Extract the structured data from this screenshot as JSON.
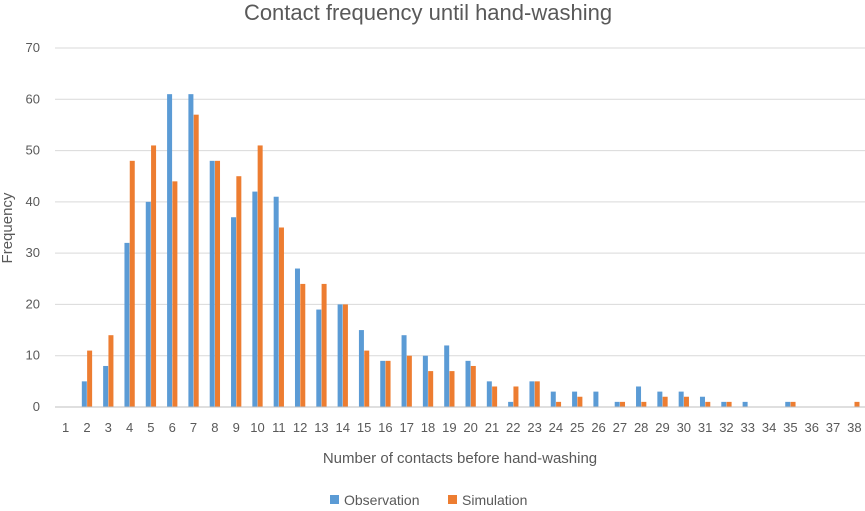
{
  "chart_data": {
    "type": "bar",
    "title": "Contact frequency until hand-washing",
    "xlabel": "Number of contacts before hand-washing",
    "ylabel": "Frequency",
    "ylim": [
      0,
      70
    ],
    "yticks": [
      0,
      10,
      20,
      30,
      40,
      50,
      60,
      70
    ],
    "grid": true,
    "legend_position": "bottom",
    "categories": [
      "1",
      "2",
      "3",
      "4",
      "5",
      "6",
      "7",
      "8",
      "9",
      "10",
      "11",
      "12",
      "13",
      "14",
      "15",
      "16",
      "17",
      "18",
      "19",
      "20",
      "21",
      "22",
      "23",
      "24",
      "25",
      "26",
      "27",
      "28",
      "29",
      "30",
      "31",
      "32",
      "33",
      "34",
      "35",
      "36",
      "37",
      "38"
    ],
    "series": [
      {
        "name": "Observation",
        "color": "#5b9bd5",
        "values": [
          0,
          5,
          8,
          32,
          40,
          61,
          61,
          48,
          37,
          42,
          41,
          27,
          19,
          20,
          15,
          9,
          14,
          10,
          12,
          9,
          5,
          1,
          5,
          3,
          3,
          3,
          1,
          4,
          3,
          3,
          2,
          1,
          1,
          0,
          1,
          0,
          0,
          0
        ]
      },
      {
        "name": "Simulation",
        "color": "#ed7d31",
        "values": [
          0,
          11,
          14,
          48,
          51,
          44,
          57,
          48,
          45,
          51,
          35,
          24,
          24,
          20,
          11,
          9,
          10,
          7,
          7,
          8,
          4,
          4,
          5,
          1,
          2,
          0,
          1,
          1,
          2,
          2,
          1,
          1,
          0,
          0,
          1,
          0,
          0,
          1
        ]
      }
    ]
  }
}
